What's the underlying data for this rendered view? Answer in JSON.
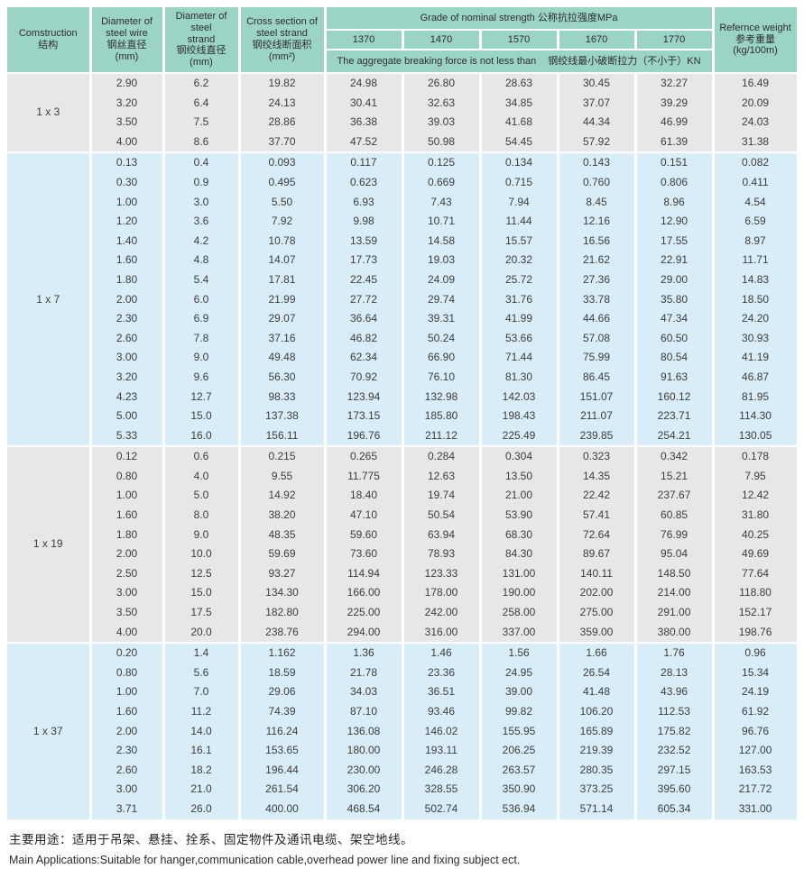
{
  "colors": {
    "header_teal": "#9bd3c5",
    "row_gray": "#e7e7e7",
    "row_blue": "#d9edf8",
    "text": "#3d3d3d"
  },
  "header": {
    "construction": [
      "Comstruction",
      "结构"
    ],
    "wire_diameter": [
      "Diameter of",
      "steel wire",
      "钢丝直径",
      "(mm)"
    ],
    "strand_diameter": [
      "Diameter of steel",
      "strand",
      "钢绞线直径",
      "(mm)"
    ],
    "cross_section": [
      "Cross section of",
      "steel strand",
      "钢绞线断面积",
      "(mm²)"
    ],
    "grade_title": "Grade of nominal strength  公称抗拉强度MPa",
    "grades": [
      "1370",
      "1470",
      "1570",
      "1670",
      "1770"
    ],
    "breaking_note_en": "The aggregate breaking force is not less than",
    "breaking_note_zh": "钢绞线最小破断拉力（不小于）KN",
    "weight": [
      "Refernce weight",
      "参考重量",
      "(kg/100m)"
    ]
  },
  "groups": [
    {
      "construction": "1 x 3",
      "tone": "gray",
      "rows": [
        [
          "2.90",
          "6.2",
          "19.82",
          "24.98",
          "26.80",
          "28.63",
          "30.45",
          "32.27",
          "16.49"
        ],
        [
          "3.20",
          "6.4",
          "24.13",
          "30.41",
          "32.63",
          "34.85",
          "37.07",
          "39.29",
          "20.09"
        ],
        [
          "3.50",
          "7.5",
          "28.86",
          "36.38",
          "39.03",
          "41.68",
          "44.34",
          "46.99",
          "24.03"
        ],
        [
          "4.00",
          "8.6",
          "37.70",
          "47.52",
          "50.98",
          "54.45",
          "57.92",
          "61.39",
          "31.38"
        ]
      ]
    },
    {
      "construction": "1 x 7",
      "tone": "blue",
      "rows": [
        [
          "0.13",
          "0.4",
          "0.093",
          "0.117",
          "0.125",
          "0.134",
          "0.143",
          "0.151",
          "0.082"
        ],
        [
          "0.30",
          "0.9",
          "0.495",
          "0.623",
          "0.669",
          "0.715",
          "0.760",
          "0.806",
          "0.411"
        ],
        [
          "1.00",
          "3.0",
          "5.50",
          "6.93",
          "7.43",
          "7.94",
          "8.45",
          "8.96",
          "4.54"
        ],
        [
          "1.20",
          "3.6",
          "7.92",
          "9.98",
          "10.71",
          "11.44",
          "12.16",
          "12.90",
          "6.59"
        ],
        [
          "1.40",
          "4.2",
          "10.78",
          "13.59",
          "14.58",
          "15.57",
          "16.56",
          "17.55",
          "8.97"
        ],
        [
          "1.60",
          "4.8",
          "14.07",
          "17.73",
          "19.03",
          "20.32",
          "21.62",
          "22.91",
          "11.71"
        ],
        [
          "1.80",
          "5.4",
          "17.81",
          "22.45",
          "24.09",
          "25.72",
          "27.36",
          "29.00",
          "14.83"
        ],
        [
          "2.00",
          "6.0",
          "21.99",
          "27.72",
          "29.74",
          "31.76",
          "33.78",
          "35.80",
          "18.50"
        ],
        [
          "2.30",
          "6.9",
          "29.07",
          "36.64",
          "39.31",
          "41.99",
          "44.66",
          "47.34",
          "24.20"
        ],
        [
          "2.60",
          "7.8",
          "37.16",
          "46.82",
          "50.24",
          "53.66",
          "57.08",
          "60.50",
          "30.93"
        ],
        [
          "3.00",
          "9.0",
          "49.48",
          "62.34",
          "66.90",
          "71.44",
          "75.99",
          "80.54",
          "41.19"
        ],
        [
          "3.20",
          "9.6",
          "56.30",
          "70.92",
          "76.10",
          "81.30",
          "86.45",
          "91.63",
          "46.87"
        ],
        [
          "4.23",
          "12.7",
          "98.33",
          "123.94",
          "132.98",
          "142.03",
          "151.07",
          "160.12",
          "81.95"
        ],
        [
          "5.00",
          "15.0",
          "137.38",
          "173.15",
          "185.80",
          "198.43",
          "211.07",
          "223.71",
          "114.30"
        ],
        [
          "5.33",
          "16.0",
          "156.11",
          "196.76",
          "211.12",
          "225.49",
          "239.85",
          "254.21",
          "130.05"
        ]
      ]
    },
    {
      "construction": "1 x 19",
      "tone": "gray",
      "rows": [
        [
          "0.12",
          "0.6",
          "0.215",
          "0.265",
          "0.284",
          "0.304",
          "0.323",
          "0.342",
          "0.178"
        ],
        [
          "0.80",
          "4.0",
          "9.55",
          "11.775",
          "12.63",
          "13.50",
          "14.35",
          "15.21",
          "7.95"
        ],
        [
          "1.00",
          "5.0",
          "14.92",
          "18.40",
          "19.74",
          "21.00",
          "22.42",
          "237.67",
          "12.42"
        ],
        [
          "1.60",
          "8.0",
          "38.20",
          "47.10",
          "50.54",
          "53.90",
          "57.41",
          "60.85",
          "31.80"
        ],
        [
          "1.80",
          "9.0",
          "48.35",
          "59.60",
          "63.94",
          "68.30",
          "72.64",
          "76.99",
          "40.25"
        ],
        [
          "2.00",
          "10.0",
          "59.69",
          "73.60",
          "78.93",
          "84.30",
          "89.67",
          "95.04",
          "49.69"
        ],
        [
          "2.50",
          "12.5",
          "93.27",
          "114.94",
          "123.33",
          "131.00",
          "140.11",
          "148.50",
          "77.64"
        ],
        [
          "3.00",
          "15.0",
          "134.30",
          "166.00",
          "178.00",
          "190.00",
          "202.00",
          "214.00",
          "118.80"
        ],
        [
          "3.50",
          "17.5",
          "182.80",
          "225.00",
          "242.00",
          "258.00",
          "275.00",
          "291.00",
          "152.17"
        ],
        [
          "4.00",
          "20.0",
          "238.76",
          "294.00",
          "316.00",
          "337.00",
          "359.00",
          "380.00",
          "198.76"
        ]
      ]
    },
    {
      "construction": "1 x 37",
      "tone": "blue",
      "rows": [
        [
          "0.20",
          "1.4",
          "1.162",
          "1.36",
          "1.46",
          "1.56",
          "1.66",
          "1.76",
          "0.96"
        ],
        [
          "0.80",
          "5.6",
          "18.59",
          "21.78",
          "23.36",
          "24.95",
          "26.54",
          "28.13",
          "15.34"
        ],
        [
          "1.00",
          "7.0",
          "29.06",
          "34.03",
          "36.51",
          "39.00",
          "41.48",
          "43.96",
          "24.19"
        ],
        [
          "1.60",
          "11.2",
          "74.39",
          "87.10",
          "93.46",
          "99.82",
          "106.20",
          "112.53",
          "61.92"
        ],
        [
          "2.00",
          "14.0",
          "116.24",
          "136.08",
          "146.02",
          "155.95",
          "165.89",
          "175.82",
          "96.76"
        ],
        [
          "2.30",
          "16.1",
          "153.65",
          "180.00",
          "193.11",
          "206.25",
          "219.39",
          "232.52",
          "127.00"
        ],
        [
          "2.60",
          "18.2",
          "196.44",
          "230.00",
          "246.28",
          "263.57",
          "280.35",
          "297.15",
          "163.53"
        ],
        [
          "3.00",
          "21.0",
          "261.54",
          "306.20",
          "328.55",
          "350.90",
          "373.25",
          "395.60",
          "217.72"
        ],
        [
          "3.71",
          "26.0",
          "400.00",
          "468.54",
          "502.74",
          "536.94",
          "571.14",
          "605.34",
          "331.00"
        ]
      ]
    }
  ],
  "footer": {
    "zh": "主要用途：适用于吊架、悬挂、拴系、固定物件及通讯电缆、架空地线。",
    "en": "Main Applications:Suitable for hanger,communication cable,overhead power line and fixing subject ect."
  }
}
